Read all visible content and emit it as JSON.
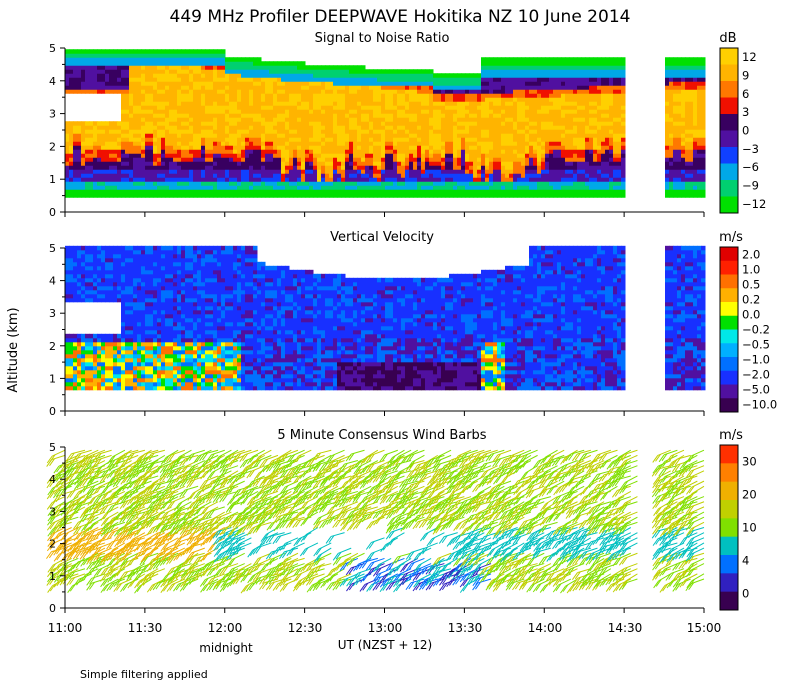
{
  "title": "449 MHz Profiler DEEPWAVE Hokitika NZ 10 June 2014",
  "ylabel": "Altitude (km)",
  "footnote": "Simple filtering applied",
  "xaxis": {
    "ticks": [
      "11:00",
      "11:30",
      "12:00",
      "12:30",
      "13:00",
      "13:30",
      "14:00",
      "14:30",
      "15:00"
    ],
    "midnight_label": "midnight",
    "label": "UT  (NZST + 12)"
  },
  "chart_data": [
    {
      "type": "heatmap",
      "title": "Signal to Noise Ratio",
      "colorbar_unit": "dB",
      "colorbar_labels": [
        "12",
        "9",
        "6",
        "3",
        "0",
        "−3",
        "−6",
        "−9",
        "−12"
      ],
      "colors": [
        "#00e000",
        "#00d070",
        "#00a8e8",
        "#1040ff",
        "#5010a0",
        "#380060",
        "#f01000",
        "#ff7800",
        "#ffb400",
        "#ffd000"
      ],
      "ylim": [
        0,
        5
      ],
      "yticks": [
        "0",
        "1",
        "2",
        "3",
        "4",
        "5"
      ],
      "xlim": [
        11.0,
        15.0
      ]
    },
    {
      "type": "heatmap",
      "title": "Vertical Velocity",
      "colorbar_unit": "m/s",
      "colorbar_labels": [
        "2.0",
        "1.0",
        "0.5",
        "0.2",
        "0.0",
        "−0.2",
        "−0.5",
        "−1.0",
        "−2.0",
        "−5.0",
        "−10.0"
      ],
      "colors": [
        "#380050",
        "#5010a0",
        "#1830ff",
        "#0070ff",
        "#00b0ff",
        "#00e8e8",
        "#00e000",
        "#ffff00",
        "#ffb000",
        "#ff7000",
        "#ff2000",
        "#e00000"
      ],
      "ylim": [
        0,
        5
      ],
      "yticks": [
        "0",
        "1",
        "2",
        "3",
        "4",
        "5"
      ],
      "xlim": [
        11.0,
        15.0
      ]
    },
    {
      "type": "scatter",
      "title": "5 Minute Consensus Wind Barbs",
      "colorbar_unit": "m/s",
      "colorbar_labels": [
        "30",
        "20",
        "10",
        "4",
        "0"
      ],
      "colors": [
        "#380050",
        "#3020c0",
        "#0070ff",
        "#00c0c0",
        "#80e000",
        "#c0d000",
        "#f0b000",
        "#ff8000",
        "#ff3000"
      ],
      "ylim": [
        0,
        5
      ],
      "yticks": [
        "0",
        "1",
        "2",
        "3",
        "4",
        "5"
      ],
      "xlim": [
        11.0,
        15.0
      ]
    }
  ]
}
